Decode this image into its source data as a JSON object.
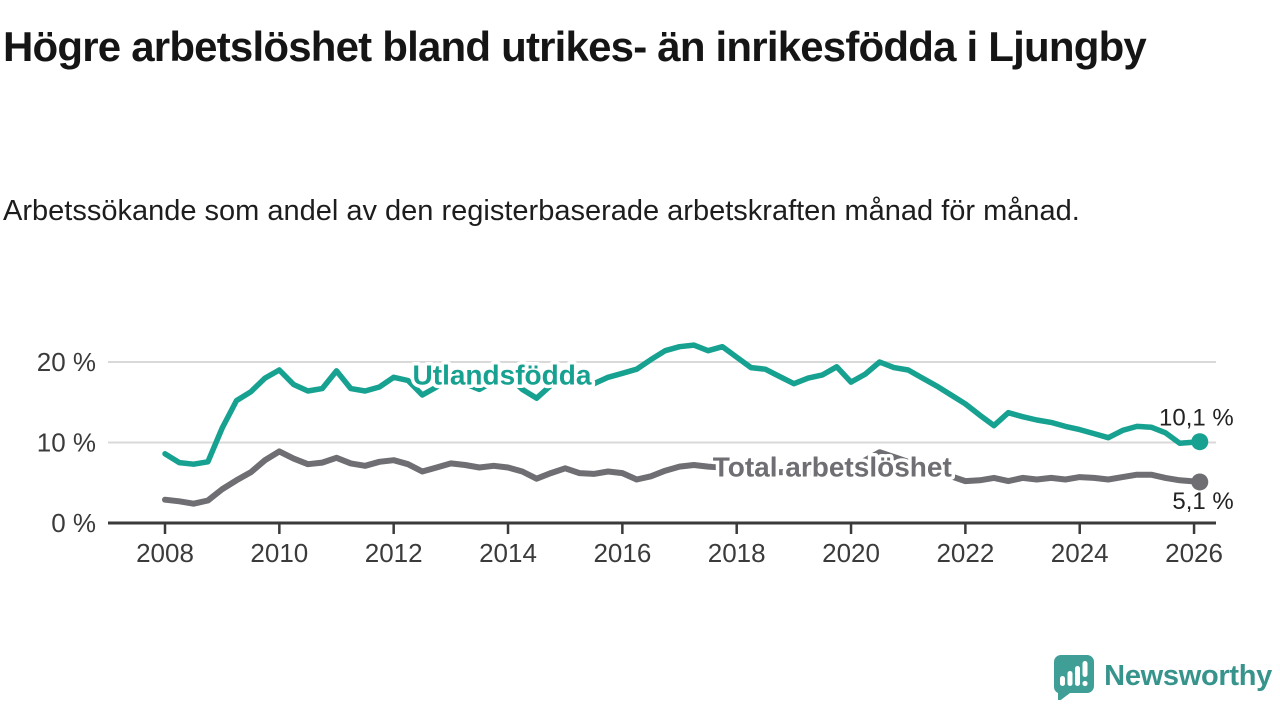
{
  "header": {
    "title": "Högre arbetslöshet bland utrikes- än inrikesfödda i Ljungby",
    "subtitle": "Arbetssökande som andel av den registerbaserade arbetskraften månad för månad."
  },
  "chart_data": {
    "type": "line",
    "title": "Högre arbetslöshet bland utrikes- än inrikesfödda i Ljungby",
    "subtitle": "Arbetssökande som andel av den registerbaserade arbetskraften månad för månad.",
    "unit": "%",
    "grid": "horizontal",
    "legend_position": "inline-labels",
    "xlim": [
      2007,
      2027.4
    ],
    "ylim": [
      0,
      24
    ],
    "xticks": [
      2008,
      2010,
      2012,
      2014,
      2016,
      2018,
      2020,
      2022,
      2024,
      2026
    ],
    "yticks": [
      0,
      10,
      20
    ],
    "ytick_labels": [
      "0 %",
      "10 %",
      "20 %"
    ],
    "x": [
      2008,
      2008.25,
      2008.5,
      2008.75,
      2009,
      2009.25,
      2009.5,
      2009.75,
      2010,
      2010.25,
      2010.5,
      2010.75,
      2011,
      2011.25,
      2011.5,
      2011.75,
      2012,
      2012.25,
      2012.5,
      2012.75,
      2013,
      2013.25,
      2013.5,
      2013.75,
      2014,
      2014.25,
      2014.5,
      2014.75,
      2015,
      2015.25,
      2015.5,
      2015.75,
      2016,
      2016.25,
      2016.5,
      2016.75,
      2017,
      2017.25,
      2017.5,
      2017.75,
      2018,
      2018.25,
      2018.5,
      2018.75,
      2019,
      2019.25,
      2019.5,
      2019.75,
      2020,
      2020.25,
      2020.5,
      2020.75,
      2021,
      2021.25,
      2021.5,
      2021.75,
      2022,
      2022.25,
      2022.5,
      2022.75,
      2023,
      2023.25,
      2023.5,
      2023.75,
      2024,
      2024.25,
      2024.5,
      2024.75,
      2025,
      2025.25,
      2025.5,
      2025.75,
      2026.1
    ],
    "series": [
      {
        "name": "Utlandsfödda",
        "color": "#16a191",
        "end_label": "10,1 %",
        "end_value": 10.1,
        "end_label_position": "above",
        "label_anchor": {
          "x": 2012.33,
          "value": 17.2
        },
        "values": [
          8.6,
          7.5,
          7.3,
          7.6,
          11.8,
          15.2,
          16.3,
          18,
          19,
          17.2,
          16.4,
          16.7,
          18.9,
          16.7,
          16.4,
          16.9,
          18.1,
          17.7,
          15.9,
          16.9,
          18.2,
          17.3,
          16.6,
          17.6,
          18.3,
          16.6,
          15.5,
          17.1,
          18,
          17.6,
          17.3,
          18.1,
          18.6,
          19.1,
          20.3,
          21.4,
          21.9,
          22.1,
          21.4,
          21.9,
          20.6,
          19.3,
          19.1,
          18.2,
          17.3,
          18,
          18.4,
          19.4,
          17.5,
          18.5,
          20,
          19.3,
          19,
          18,
          17,
          15.9,
          14.8,
          13.4,
          12.1,
          13.7,
          13.2,
          12.8,
          12.5,
          12,
          11.6,
          11.1,
          10.6,
          11.5,
          12,
          11.9,
          11.2,
          9.9,
          10.1
        ]
      },
      {
        "name": "Total arbetslöshet",
        "color": "#6e6e73",
        "end_label": "5,1 %",
        "end_value": 5.1,
        "end_label_position": "below",
        "label_anchor": {
          "x": 2017.58,
          "value": 5.8
        },
        "values": [
          2.9,
          2.7,
          2.4,
          2.8,
          4.2,
          5.3,
          6.3,
          7.8,
          8.9,
          8,
          7.3,
          7.5,
          8.1,
          7.4,
          7.1,
          7.6,
          7.8,
          7.3,
          6.4,
          6.9,
          7.4,
          7.2,
          6.9,
          7.1,
          6.9,
          6.4,
          5.5,
          6.2,
          6.8,
          6.2,
          6.1,
          6.4,
          6.2,
          5.4,
          5.8,
          6.5,
          7,
          7.2,
          7,
          6.9,
          6.8,
          6.6,
          6.4,
          6.3,
          6.4,
          6.3,
          6.2,
          6.4,
          6.8,
          7.8,
          8.8,
          8.2,
          7.6,
          7,
          6.4,
          5.8,
          5.2,
          5.3,
          5.6,
          5.2,
          5.6,
          5.4,
          5.6,
          5.4,
          5.7,
          5.6,
          5.4,
          5.7,
          6,
          6,
          5.6,
          5.3,
          5.1
        ]
      }
    ]
  },
  "colors": {
    "accent_teal": "#16a191",
    "series_gray": "#6e6e73",
    "grid": "#d9d9d9",
    "axis": "#3a3a3a",
    "tick_text": "#3b3b3b",
    "end_label_text": "#222222",
    "logo_teal": "#3f9f97",
    "logo_text_teal": "#37948c"
  },
  "footer": {
    "brand": "Newsworthy"
  }
}
